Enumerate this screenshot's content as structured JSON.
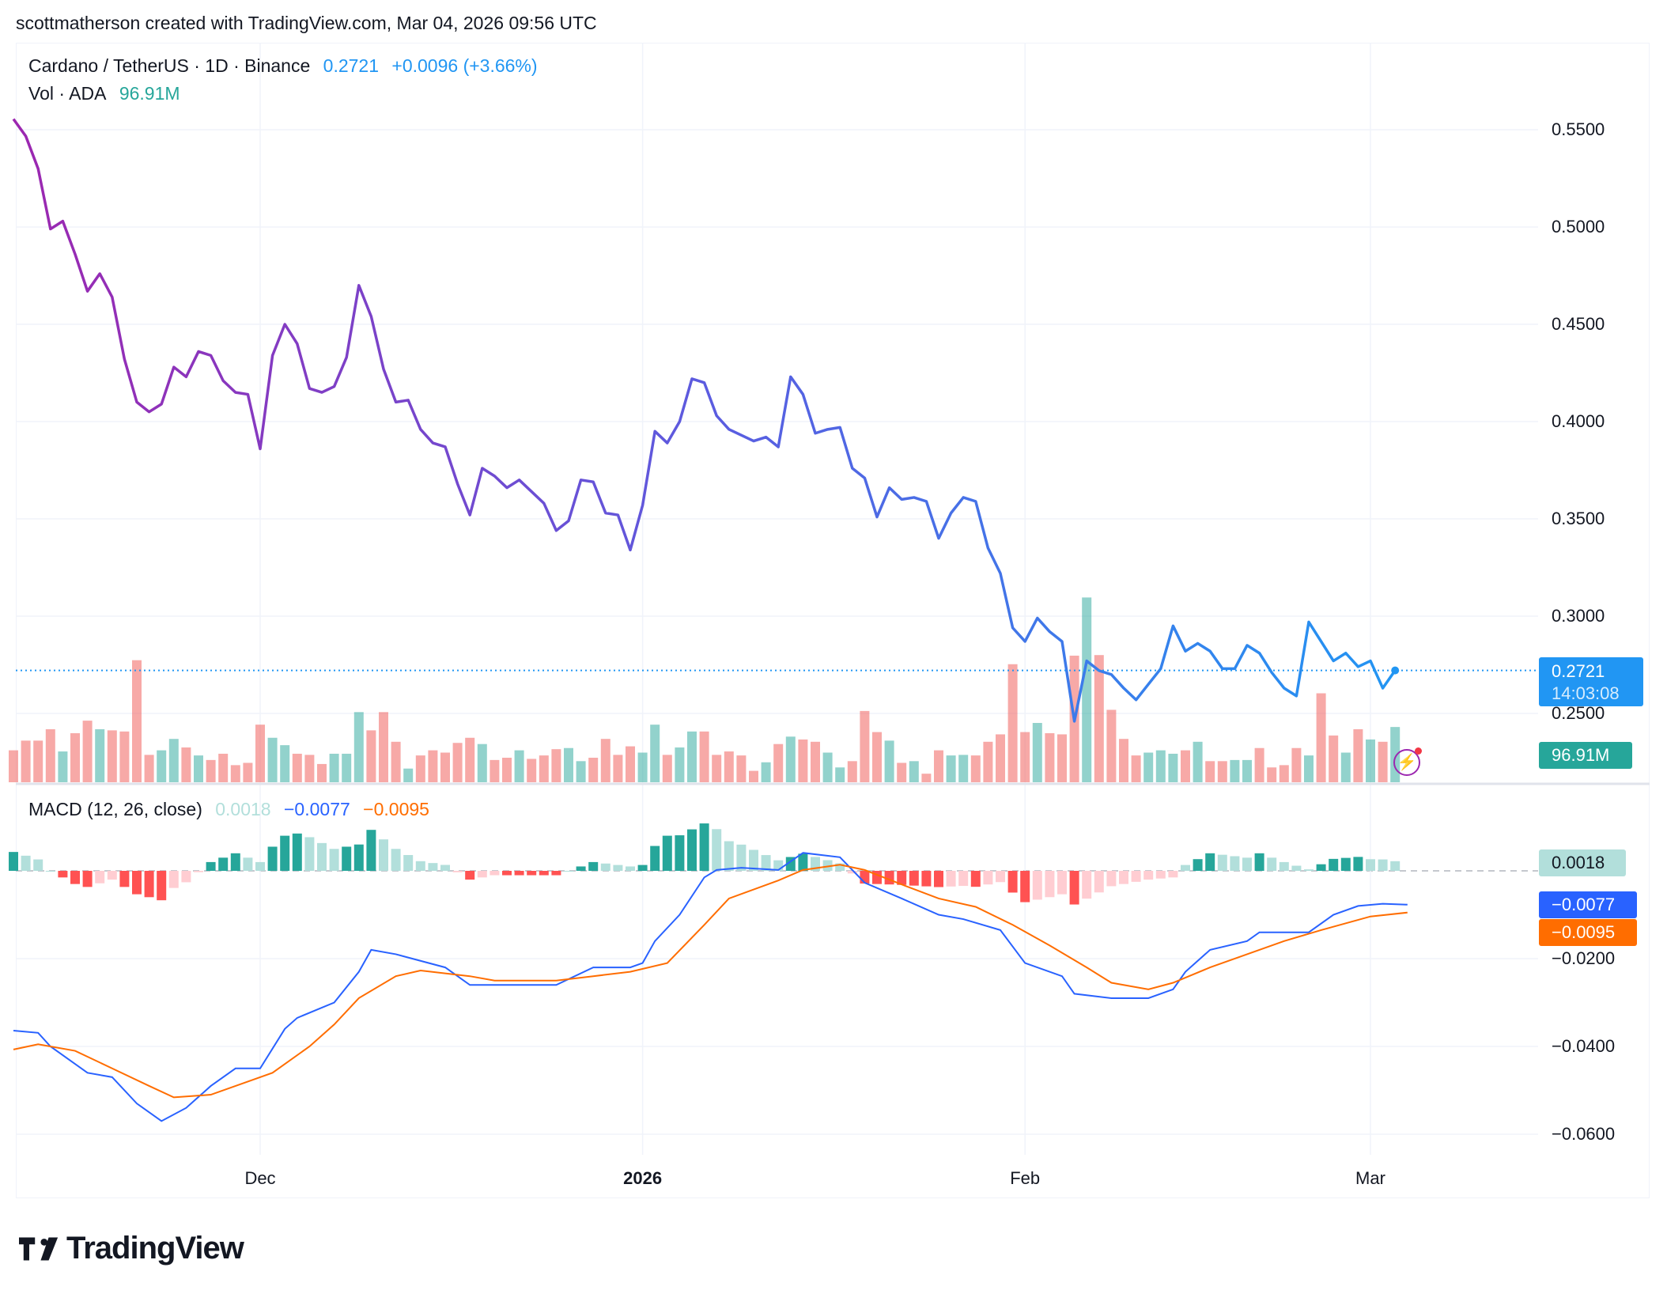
{
  "credit": "scottmatherson created with TradingView.com, Mar 04, 2026 09:56 UTC",
  "legend": {
    "symbol": "Cardano / TetherUS · 1D · Binance",
    "last": "0.2721",
    "change": "+0.0096 (+3.66%)",
    "vol_label": "Vol · ADA",
    "vol_value": "96.91M",
    "macd_label": "MACD (12, 26, close)",
    "macd_hist": "0.0018",
    "macd_line": "−0.0077",
    "macd_signal": "−0.0095"
  },
  "badges": {
    "price": "0.2721",
    "countdown": "14:03:08",
    "volume": "96.91M",
    "hist": "0.0018",
    "macd": "−0.0077",
    "signal": "−0.0095"
  },
  "logo": "TradingView",
  "colors": {
    "line_start": "#9c27b0",
    "line_end": "#2196f3",
    "up": "#26a69a",
    "down": "#ef5350",
    "macd": "#2962ff",
    "signal": "#ff6d00",
    "price_badge": "#2196f3"
  },
  "chart_data": [
    {
      "type": "line",
      "series": "close",
      "start_date": "2025-11-11",
      "end_date": "2026-03-04",
      "ylim": [
        0.22,
        0.56
      ],
      "price_ticks": [
        "0.5500",
        "0.5000",
        "0.4500",
        "0.4000",
        "0.3500",
        "0.3000",
        "0.2500"
      ],
      "x_ticks": [
        "Dec",
        "2026",
        "Feb",
        "Mar"
      ],
      "closes": [
        0.5555,
        0.5467,
        0.53,
        0.499,
        0.503,
        0.486,
        0.467,
        0.476,
        0.464,
        0.432,
        0.41,
        0.405,
        0.409,
        0.428,
        0.423,
        0.436,
        0.434,
        0.421,
        0.415,
        0.414,
        0.386,
        0.434,
        0.45,
        0.44,
        0.417,
        0.415,
        0.418,
        0.433,
        0.47,
        0.454,
        0.427,
        0.41,
        0.411,
        0.396,
        0.389,
        0.387,
        0.368,
        0.352,
        0.376,
        0.372,
        0.366,
        0.37,
        0.364,
        0.358,
        0.344,
        0.349,
        0.37,
        0.369,
        0.353,
        0.352,
        0.334,
        0.357,
        0.395,
        0.389,
        0.4,
        0.422,
        0.42,
        0.403,
        0.396,
        0.393,
        0.39,
        0.392,
        0.387,
        0.423,
        0.414,
        0.394,
        0.396,
        0.397,
        0.376,
        0.371,
        0.351,
        0.366,
        0.36,
        0.361,
        0.359,
        0.34,
        0.353,
        0.361,
        0.359,
        0.335,
        0.322,
        0.294,
        0.287,
        0.299,
        0.292,
        0.287,
        0.246,
        0.277,
        0.272,
        0.27,
        0.263,
        0.257,
        0.265,
        0.273,
        0.295,
        0.282,
        0.286,
        0.282,
        0.273,
        0.273,
        0.285,
        0.281,
        0.271,
        0.263,
        0.259,
        0.297,
        0.287,
        0.277,
        0.281,
        0.274,
        0.277,
        0.263,
        0.2721
      ],
      "last_price": 0.2721
    },
    {
      "type": "bar",
      "series": "volume",
      "unit": "M ADA",
      "values": [
        56,
        73,
        73,
        93,
        54,
        86,
        108,
        93,
        91,
        89,
        214,
        48,
        56,
        76,
        61,
        47,
        39,
        50,
        30,
        34,
        101,
        78,
        65,
        50,
        48,
        32,
        50,
        50,
        123,
        91,
        123,
        71,
        24,
        47,
        56,
        52,
        69,
        78,
        67,
        39,
        43,
        56,
        41,
        47,
        58,
        60,
        37,
        43,
        76,
        48,
        63,
        52,
        101,
        48,
        61,
        89,
        89,
        48,
        54,
        47,
        20,
        35,
        67,
        80,
        75,
        71,
        52,
        26,
        37,
        125,
        88,
        73,
        34,
        37,
        15,
        56,
        47,
        48,
        47,
        71,
        84,
        207,
        88,
        104,
        86,
        84,
        222,
        324,
        223,
        127,
        76,
        47,
        52,
        56,
        50,
        56,
        71,
        37,
        37,
        39,
        39,
        60,
        26,
        30,
        60,
        47,
        156,
        82,
        52,
        93,
        75,
        71,
        96.91
      ]
    },
    {
      "type": "line",
      "series": "MACD (12, 26, close)",
      "macd_ticks": [
        "−0.0200",
        "−0.0400",
        "−0.0600"
      ],
      "macd": [
        [
          "2025-11-11",
          -0.0364
        ],
        [
          "2025-11-13",
          -0.0369
        ],
        [
          "2025-11-14",
          -0.04
        ],
        [
          "2025-11-17",
          -0.046
        ],
        [
          "2025-11-19",
          -0.047
        ],
        [
          "2025-11-21",
          -0.053
        ],
        [
          "2025-11-23",
          -0.057
        ],
        [
          "2025-11-25",
          -0.054
        ],
        [
          "2025-11-27",
          -0.049
        ],
        [
          "2025-11-29",
          -0.045
        ],
        [
          "2025-12-01",
          -0.045
        ],
        [
          "2025-12-03",
          -0.036
        ],
        [
          "2025-12-04",
          -0.0335
        ],
        [
          "2025-12-07",
          -0.03
        ],
        [
          "2025-12-09",
          -0.023
        ],
        [
          "2025-12-10",
          -0.018
        ],
        [
          "2025-12-12",
          -0.019
        ],
        [
          "2025-12-16",
          -0.022
        ],
        [
          "2025-12-18",
          -0.026
        ],
        [
          "2025-12-21",
          -0.026
        ],
        [
          "2025-12-25",
          -0.026
        ],
        [
          "2025-12-28",
          -0.022
        ],
        [
          "2025-12-31",
          -0.022
        ],
        [
          "2026-01-01",
          -0.021
        ],
        [
          "2026-01-02",
          -0.016
        ],
        [
          "2026-01-04",
          -0.01
        ],
        [
          "2026-01-06",
          -0.0015
        ],
        [
          "2026-01-07",
          0.0002
        ],
        [
          "2026-01-09",
          0.0007
        ],
        [
          "2026-01-12",
          0.0002
        ],
        [
          "2026-01-14",
          0.0041
        ],
        [
          "2026-01-17",
          0.0031
        ],
        [
          "2026-01-19",
          -0.0027
        ],
        [
          "2026-01-22",
          -0.0063
        ],
        [
          "2026-01-25",
          -0.01
        ],
        [
          "2026-01-27",
          -0.011
        ],
        [
          "2026-01-30",
          -0.0135
        ],
        [
          "2026-02-01",
          -0.021
        ],
        [
          "2026-02-04",
          -0.024
        ],
        [
          "2026-02-05",
          -0.028
        ],
        [
          "2026-02-08",
          -0.029
        ],
        [
          "2026-02-11",
          -0.029
        ],
        [
          "2026-02-13",
          -0.027
        ],
        [
          "2026-02-14",
          -0.023
        ],
        [
          "2026-02-16",
          -0.018
        ],
        [
          "2026-02-19",
          -0.016
        ],
        [
          "2026-02-20",
          -0.014
        ],
        [
          "2026-02-24",
          -0.014
        ],
        [
          "2026-02-26",
          -0.01
        ],
        [
          "2026-02-28",
          -0.008
        ],
        [
          "2026-03-02",
          -0.0075
        ],
        [
          "2026-03-04",
          -0.0077
        ]
      ],
      "signal": [
        [
          "2025-11-11",
          -0.0407
        ],
        [
          "2025-11-13",
          -0.0395
        ],
        [
          "2025-11-16",
          -0.041
        ],
        [
          "2025-11-19",
          -0.045
        ],
        [
          "2025-11-22",
          -0.049
        ],
        [
          "2025-11-24",
          -0.0516
        ],
        [
          "2025-11-27",
          -0.051
        ],
        [
          "2025-11-30",
          -0.048
        ],
        [
          "2025-12-02",
          -0.046
        ],
        [
          "2025-12-05",
          -0.04
        ],
        [
          "2025-12-07",
          -0.035
        ],
        [
          "2025-12-09",
          -0.029
        ],
        [
          "2025-12-12",
          -0.024
        ],
        [
          "2025-12-14",
          -0.0227
        ],
        [
          "2025-12-18",
          -0.024
        ],
        [
          "2025-12-20",
          -0.025
        ],
        [
          "2025-12-25",
          -0.025
        ],
        [
          "2025-12-28",
          -0.024
        ],
        [
          "2025-12-31",
          -0.023
        ],
        [
          "2026-01-03",
          -0.021
        ],
        [
          "2026-01-06",
          -0.0123
        ],
        [
          "2026-01-08",
          -0.0063
        ],
        [
          "2026-01-12",
          -0.0022
        ],
        [
          "2026-01-14",
          0.0002
        ],
        [
          "2026-01-17",
          0.0014
        ],
        [
          "2026-01-19",
          0.0002
        ],
        [
          "2026-01-22",
          -0.0031
        ],
        [
          "2026-01-25",
          -0.0063
        ],
        [
          "2026-01-28",
          -0.0082
        ],
        [
          "2026-01-31",
          -0.0123
        ],
        [
          "2026-02-03",
          -0.017
        ],
        [
          "2026-02-06",
          -0.022
        ],
        [
          "2026-02-08",
          -0.0255
        ],
        [
          "2026-02-11",
          -0.027
        ],
        [
          "2026-02-13",
          -0.0255
        ],
        [
          "2026-02-16",
          -0.022
        ],
        [
          "2026-02-19",
          -0.019
        ],
        [
          "2026-02-22",
          -0.016
        ],
        [
          "2026-02-25",
          -0.0135
        ],
        [
          "2026-03-01",
          -0.0104
        ],
        [
          "2026-03-04",
          -0.0095
        ]
      ],
      "histogram_last": 0.0018
    }
  ]
}
